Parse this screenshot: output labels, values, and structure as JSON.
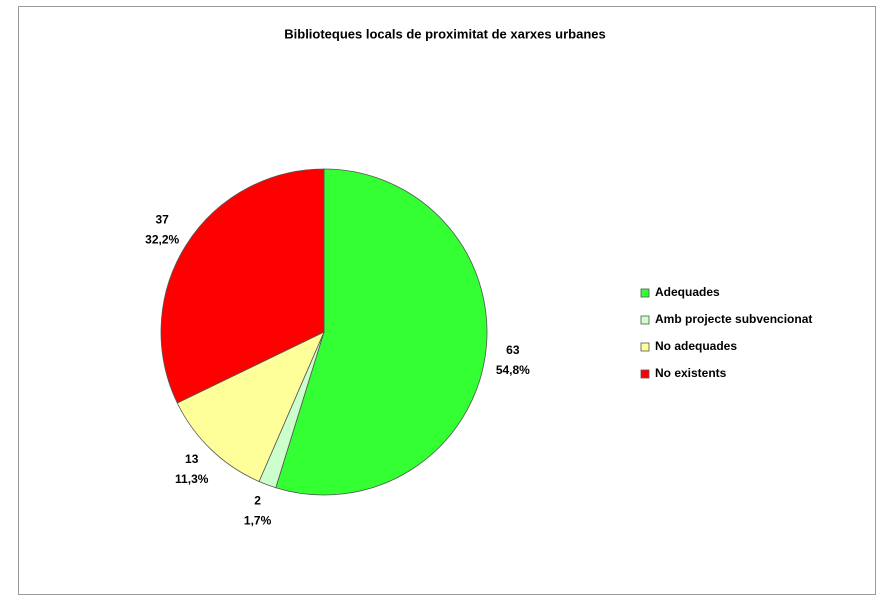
{
  "chart_data": {
    "type": "pie",
    "title": "Biblioteques locals de proximitat de xarxes urbanes",
    "categories": [
      "Adequades",
      "Amb projecte subvencionat",
      "No adequades",
      "No existents"
    ],
    "values": [
      63,
      2,
      13,
      37
    ],
    "shares": [
      54.8,
      1.7,
      11.3,
      32.2
    ],
    "share_labels": [
      "54,8%",
      "1,7%",
      "11,3%",
      "32,2%"
    ],
    "colors": [
      "#33ff33",
      "#ccffcc",
      "#ffff99",
      "#ff0000"
    ],
    "legend": "right"
  }
}
